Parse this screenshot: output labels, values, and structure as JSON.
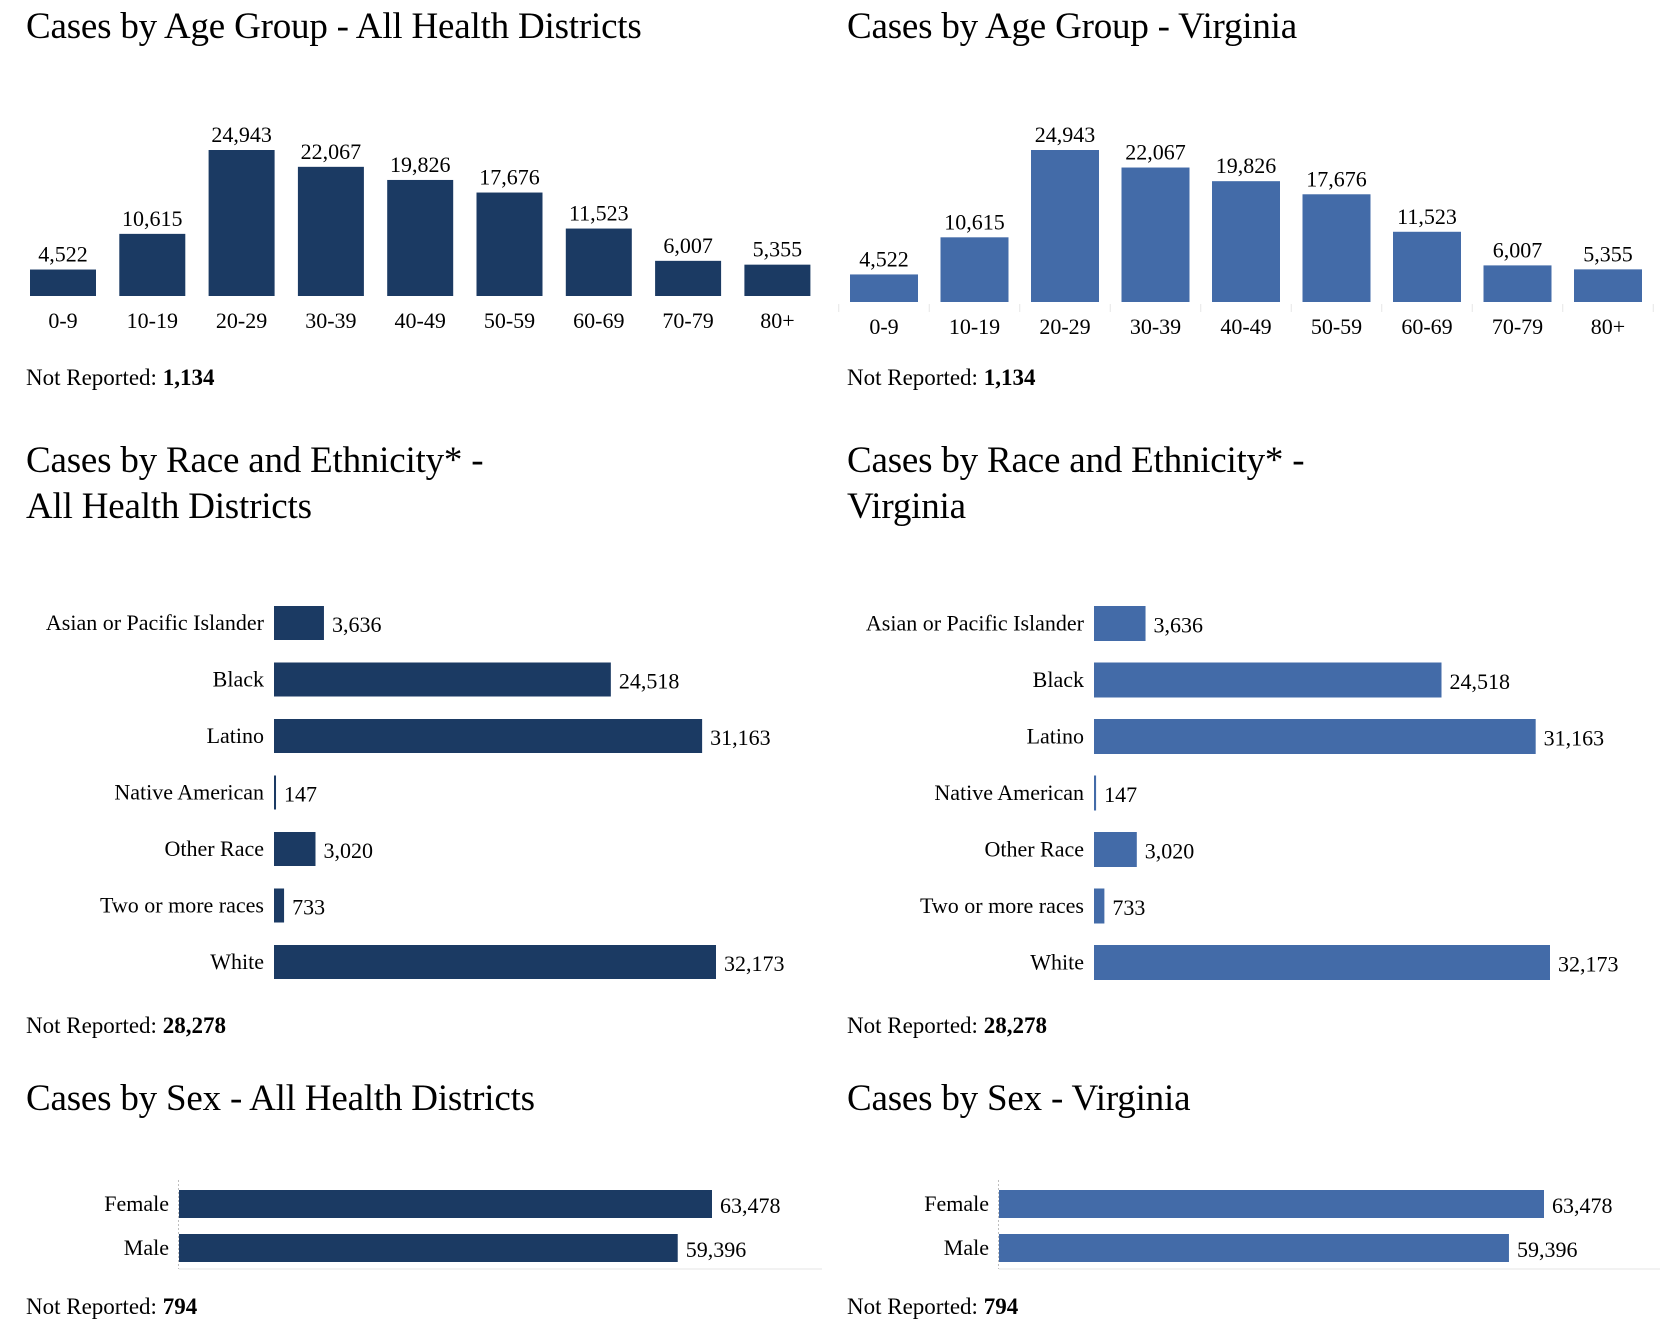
{
  "colors": {
    "left_panel_bar": "#1b3a63",
    "right_panel_bar": "#436ba8",
    "axis": "#e6e6e6"
  },
  "panels": [
    {
      "id": "all-health-districts",
      "age": {
        "title": "Cases by Age Group - All Health Districts",
        "not_reported_label": "Not Reported:",
        "not_reported_value": "1,134"
      },
      "race": {
        "title_line1": "Cases by Race and Ethnicity* -",
        "title_line2": "All Health Districts",
        "not_reported_label": "Not Reported:",
        "not_reported_value": "28,278"
      },
      "sex": {
        "title": "Cases by Sex - All Health Districts",
        "not_reported_label": "Not Reported:",
        "not_reported_value": "794"
      }
    },
    {
      "id": "virginia",
      "age": {
        "title": "Cases by Age Group - Virginia",
        "not_reported_label": "Not Reported:",
        "not_reported_value": "1,134"
      },
      "race": {
        "title_line1": "Cases by Race and Ethnicity* -",
        "title_line2": "Virginia",
        "not_reported_label": "Not Reported:",
        "not_reported_value": "28,278"
      },
      "sex": {
        "title": "Cases by Sex - Virginia",
        "not_reported_label": "Not Reported:",
        "not_reported_value": "794"
      }
    }
  ],
  "chart_data": [
    {
      "type": "bar",
      "orientation": "vertical",
      "panel": "all-health-districts",
      "title": "Cases by Age Group - All Health Districts",
      "categories": [
        "0-9",
        "10-19",
        "20-29",
        "30-39",
        "40-49",
        "50-59",
        "60-69",
        "70-79",
        "80+"
      ],
      "values": [
        4522,
        10615,
        24943,
        22067,
        19826,
        17676,
        11523,
        6007,
        5355
      ],
      "labels": [
        "4,522",
        "10,615",
        "24,943",
        "22,067",
        "19,826",
        "17,676",
        "11,523",
        "6,007",
        "5,355"
      ],
      "xlabel": "",
      "ylabel": "",
      "ylim": [
        0,
        24943
      ],
      "grid": false,
      "data_labels": true,
      "color": "#1b3a63"
    },
    {
      "type": "bar",
      "orientation": "vertical",
      "panel": "virginia",
      "title": "Cases by Age Group - Virginia",
      "categories": [
        "0-9",
        "10-19",
        "20-29",
        "30-39",
        "40-49",
        "50-59",
        "60-69",
        "70-79",
        "80+"
      ],
      "values": [
        4522,
        10615,
        24943,
        22067,
        19826,
        17676,
        11523,
        6007,
        5355
      ],
      "labels": [
        "4,522",
        "10,615",
        "24,943",
        "22,067",
        "19,826",
        "17,676",
        "11,523",
        "6,007",
        "5,355"
      ],
      "xlabel": "",
      "ylabel": "",
      "ylim": [
        0,
        24943
      ],
      "grid": false,
      "data_labels": true,
      "color": "#436ba8"
    },
    {
      "type": "bar",
      "orientation": "horizontal",
      "panel": "all-health-districts",
      "title": "Cases by Race and Ethnicity* - All Health Districts",
      "categories": [
        "Asian or Pacific Islander",
        "Black",
        "Latino",
        "Native American",
        "Other Race",
        "Two or more races",
        "White"
      ],
      "values": [
        3636,
        24518,
        31163,
        147,
        3020,
        733,
        32173
      ],
      "labels": [
        "3,636",
        "24,518",
        "31,163",
        "147",
        "3,020",
        "733",
        "32,173"
      ],
      "xlim": [
        0,
        32173
      ],
      "grid": false,
      "data_labels": true,
      "color": "#1b3a63"
    },
    {
      "type": "bar",
      "orientation": "horizontal",
      "panel": "virginia",
      "title": "Cases by Race and Ethnicity* - Virginia",
      "categories": [
        "Asian or Pacific Islander",
        "Black",
        "Latino",
        "Native American",
        "Other Race",
        "Two or more races",
        "White"
      ],
      "values": [
        3636,
        24518,
        31163,
        147,
        3020,
        733,
        32173
      ],
      "labels": [
        "3,636",
        "24,518",
        "31,163",
        "147",
        "3,020",
        "733",
        "32,173"
      ],
      "xlim": [
        0,
        32173
      ],
      "grid": false,
      "data_labels": true,
      "color": "#436ba8"
    },
    {
      "type": "bar",
      "orientation": "horizontal",
      "panel": "all-health-districts",
      "title": "Cases by Sex - All Health Districts",
      "categories": [
        "Female",
        "Male"
      ],
      "values": [
        63478,
        59396
      ],
      "labels": [
        "63,478",
        "59,396"
      ],
      "xlim": [
        0,
        63478
      ],
      "grid": false,
      "data_labels": true,
      "color": "#1b3a63"
    },
    {
      "type": "bar",
      "orientation": "horizontal",
      "panel": "virginia",
      "title": "Cases by Sex - Virginia",
      "categories": [
        "Female",
        "Male"
      ],
      "values": [
        63478,
        59396
      ],
      "labels": [
        "63,478",
        "59,396"
      ],
      "xlim": [
        0,
        63478
      ],
      "grid": false,
      "data_labels": true,
      "color": "#436ba8"
    }
  ]
}
